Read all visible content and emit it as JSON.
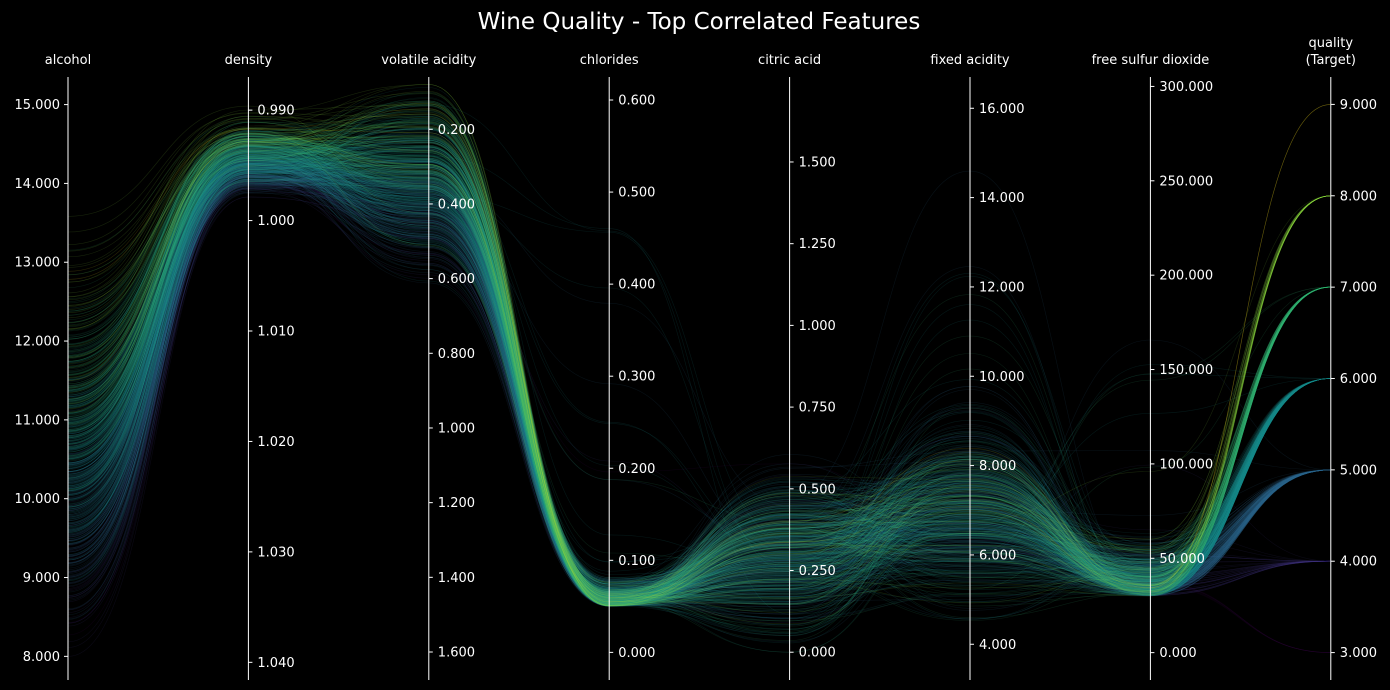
{
  "chart_data": {
    "type": "parallel-coordinates",
    "title": "Wine Quality - Top Correlated Features",
    "axes": [
      {
        "key": "alcohol",
        "label": [
          "alcohol"
        ],
        "range": [
          7.7,
          15.35
        ],
        "ticks": [
          8,
          9,
          10,
          11,
          12,
          13,
          14,
          15
        ],
        "tick_side": "left"
      },
      {
        "key": "density",
        "label": [
          "density"
        ],
        "range": [
          1.0416,
          0.987
        ],
        "ticks": [
          0.99,
          1.0,
          1.01,
          1.02,
          1.03,
          1.04
        ],
        "tick_side": "right"
      },
      {
        "key": "volatile_acidity",
        "label": [
          "volatile acidity"
        ],
        "range": [
          1.675,
          0.06
        ],
        "ticks": [
          0.2,
          0.4,
          0.6,
          0.8,
          1.0,
          1.2,
          1.4,
          1.6
        ],
        "tick_side": "right"
      },
      {
        "key": "chlorides",
        "label": [
          "chlorides"
        ],
        "range": [
          -0.03,
          0.625
        ],
        "ticks": [
          0,
          0.1,
          0.2,
          0.3,
          0.4,
          0.5,
          0.6
        ],
        "tick_side": "right"
      },
      {
        "key": "citric_acid",
        "label": [
          "citric acid"
        ],
        "range": [
          -0.085,
          1.76
        ],
        "ticks": [
          0,
          0.25,
          0.5,
          0.75,
          1.0,
          1.25,
          1.5
        ],
        "tick_side": "right"
      },
      {
        "key": "fixed_acidity",
        "label": [
          "fixed acidity"
        ],
        "range": [
          3.2,
          16.7
        ],
        "ticks": [
          4,
          6,
          8,
          10,
          12,
          14,
          16
        ],
        "tick_side": "right"
      },
      {
        "key": "free_sulfur_dioxide",
        "label": [
          "free sulfur dioxide"
        ],
        "range": [
          -14.5,
          305
        ],
        "ticks": [
          0,
          50,
          100,
          150,
          200,
          250,
          300
        ],
        "tick_side": "right"
      },
      {
        "key": "quality",
        "label": [
          "quality",
          "(Target)"
        ],
        "range": [
          2.7,
          9.3
        ],
        "ticks": [
          3,
          4,
          5,
          6,
          7,
          8,
          9
        ],
        "tick_side": "right"
      }
    ],
    "tick_decimals": 3,
    "color_by": "quality",
    "colormap": "viridis",
    "quality_levels": [
      3,
      4,
      5,
      6,
      7,
      8,
      9
    ],
    "quality_colors": {
      "3": "#440154",
      "4": "#443a83",
      "5": "#31688e",
      "6": "#21908d",
      "7": "#35b779",
      "8": "#8fd744",
      "9": "#fde725"
    },
    "background": "#000000",
    "foreground": "#ffffff"
  }
}
